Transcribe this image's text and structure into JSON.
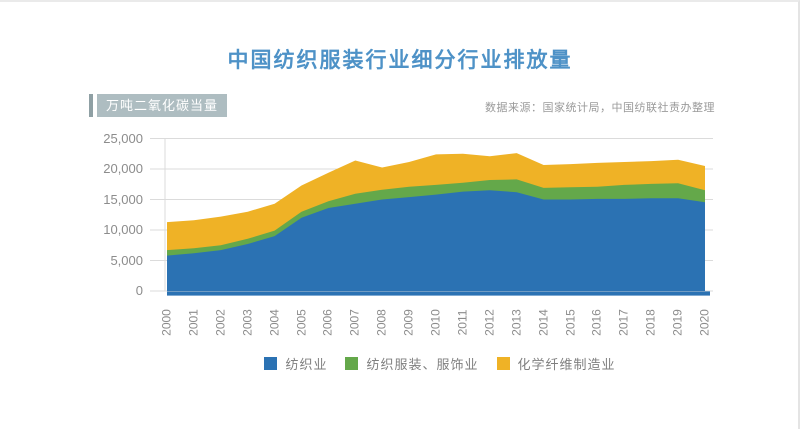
{
  "page": {
    "bg": "#FFFFFF",
    "edge_line_color": "#EAEAEA"
  },
  "title": {
    "text": "中国纺织服装行业细分行业排放量",
    "color": "#4E92C7"
  },
  "unit_label": {
    "text": "万吨二氧化碳当量",
    "bg": "#AEBDC1",
    "bar_color": "#8FA0A4",
    "text_color": "#FFFFFF"
  },
  "source_note": {
    "text": "数据来源：国家统计局，中国纺联社责办整理",
    "color": "#9A9A9A"
  },
  "chart_data": {
    "type": "area",
    "stacked": true,
    "title": "中国纺织服装行业细分行业排放量",
    "ylabel": "万吨二氧化碳当量",
    "x": [
      "2000",
      "2001",
      "2002",
      "2003",
      "2004",
      "2005",
      "2006",
      "2007",
      "2008",
      "2009",
      "2010",
      "2011",
      "2012",
      "2013",
      "2014",
      "2015",
      "2016",
      "2017",
      "2018",
      "2019",
      "2020"
    ],
    "series": [
      {
        "name": "纺织业",
        "color": "#2B72B3",
        "values": [
          5800,
          6200,
          6700,
          7700,
          9000,
          12000,
          13600,
          14300,
          15000,
          15400,
          15800,
          16300,
          16500,
          16200,
          15000,
          15000,
          15100,
          15100,
          15200,
          15200,
          14550
        ]
      },
      {
        "name": "纺织服装、服饰业",
        "color": "#64A84A",
        "values": [
          900,
          800,
          800,
          850,
          900,
          1000,
          1100,
          1650,
          1600,
          1700,
          1600,
          1450,
          1700,
          2100,
          1900,
          2000,
          2000,
          2300,
          2350,
          2450,
          1950
        ]
      },
      {
        "name": "化学纤维制造业",
        "color": "#EFB226",
        "values": [
          4600,
          4600,
          4700,
          4450,
          4400,
          4300,
          4700,
          5450,
          3650,
          4050,
          5000,
          4750,
          3900,
          4300,
          3750,
          3800,
          3900,
          3750,
          3750,
          3850,
          4000
        ]
      }
    ],
    "totals": [
      11300,
      11600,
      12200,
      13000,
      14300,
      17300,
      19400,
      21400,
      20250,
      21150,
      22400,
      22500,
      22100,
      22600,
      20650,
      20800,
      21000,
      21150,
      21300,
      21500,
      20500
    ],
    "ylim": [
      0,
      25000
    ],
    "yticks": [
      0,
      5000,
      10000,
      15000,
      20000,
      25000
    ],
    "ytick_labels": [
      "0",
      "5,000",
      "10,000",
      "15,000",
      "20,000",
      "25,000"
    ],
    "grid": true,
    "legend_position": "bottom",
    "axis_line_color": "#2B72B3",
    "gridline_color": "#DBDBDB",
    "tick_label_color": "#8C8C8C",
    "legend_text_color": "#7F7F7F"
  }
}
